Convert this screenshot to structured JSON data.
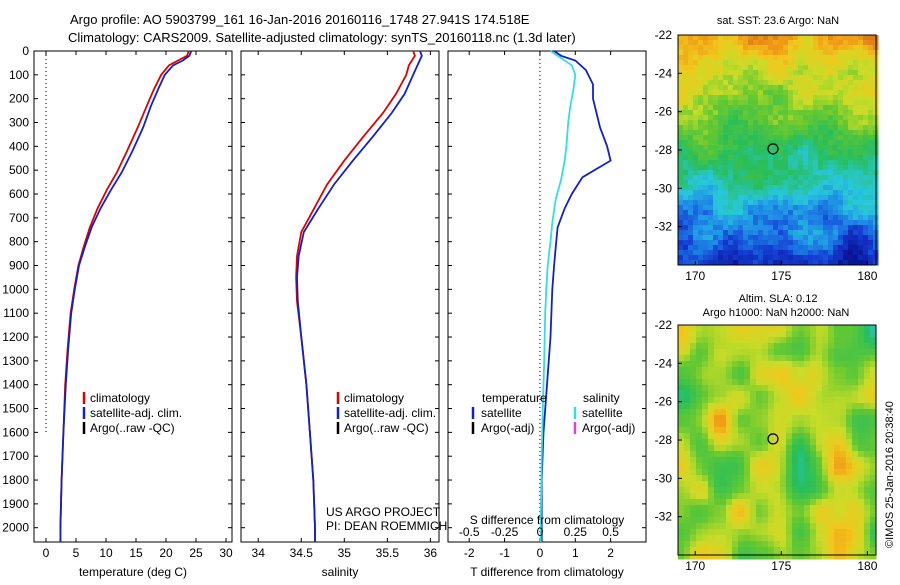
{
  "header": {
    "line1": "Argo profile: AO 5903799_161 16-Jan-2016 20160116_1748 27.941S 174.518E",
    "line2": "Climatology: CARS2009. Satellite-adjusted climatology: synTS_20160118.nc (1.3d later)"
  },
  "colors": {
    "climatology": "#e00000",
    "satellite": "#1020d0",
    "argo": "#000000",
    "salinity_satellite": "#30e0e0",
    "salinity_argo": "#e040e0"
  },
  "chart_data": [
    {
      "type": "line",
      "name": "temperature-profile",
      "xlabel": "temperature (deg C)",
      "ylim": [
        2060,
        0
      ],
      "xlim": [
        -2,
        31
      ],
      "xticks": [
        0,
        5,
        10,
        15,
        20,
        25,
        30
      ],
      "yticks": [
        0,
        100,
        200,
        300,
        400,
        500,
        600,
        700,
        800,
        900,
        1000,
        1100,
        1200,
        1300,
        1400,
        1500,
        1600,
        1700,
        1800,
        1900,
        2000
      ],
      "legend": [
        "climatology",
        "satellite-adj. clim.",
        "Argo(..raw -QC)"
      ],
      "zero_line": {
        "x": 0,
        "to_depth": 1600
      },
      "series": [
        {
          "name": "climatology",
          "points": [
            [
              23.8,
              0
            ],
            [
              23.5,
              20
            ],
            [
              22,
              40
            ],
            [
              20.5,
              60
            ],
            [
              19.2,
              100
            ],
            [
              18,
              160
            ],
            [
              16.8,
              230
            ],
            [
              15.3,
              320
            ],
            [
              13.5,
              420
            ],
            [
              11.8,
              510
            ],
            [
              10.2,
              580
            ],
            [
              8.6,
              660
            ],
            [
              7.3,
              740
            ],
            [
              6.3,
              820
            ],
            [
              5.4,
              900
            ],
            [
              4.7,
              1000
            ],
            [
              4.1,
              1100
            ],
            [
              3.6,
              1250
            ],
            [
              3.2,
              1400
            ],
            [
              2.9,
              1600
            ],
            [
              2.6,
              1800
            ],
            [
              2.4,
              2000
            ],
            [
              2.4,
              2060
            ]
          ]
        },
        {
          "name": "satellite-adj. clim.",
          "points": [
            [
              24.2,
              0
            ],
            [
              23.9,
              20
            ],
            [
              22.8,
              40
            ],
            [
              21.2,
              60
            ],
            [
              19.8,
              100
            ],
            [
              18.7,
              160
            ],
            [
              17.5,
              230
            ],
            [
              16.2,
              320
            ],
            [
              14.4,
              420
            ],
            [
              12.6,
              510
            ],
            [
              10.9,
              580
            ],
            [
              9.1,
              660
            ],
            [
              7.6,
              740
            ],
            [
              6.5,
              820
            ],
            [
              5.5,
              900
            ],
            [
              4.8,
              1000
            ],
            [
              4.2,
              1100
            ],
            [
              3.7,
              1250
            ],
            [
              3.3,
              1400
            ],
            [
              2.9,
              1600
            ],
            [
              2.6,
              1800
            ],
            [
              2.4,
              2000
            ],
            [
              2.4,
              2060
            ]
          ]
        }
      ]
    },
    {
      "type": "line",
      "name": "salinity-profile",
      "xlabel": "salinity",
      "ylim": [
        2060,
        0
      ],
      "xlim": [
        33.8,
        36.1
      ],
      "xticks": [
        34,
        34.5,
        35,
        35.5,
        36
      ],
      "legend": [
        "climatology",
        "satellite-adj. clim.",
        "Argo(..raw -QC)"
      ],
      "annotation": [
        "US ARGO PROJECT",
        "PI: DEAN ROEMMICH"
      ],
      "series": [
        {
          "name": "climatology",
          "points": [
            [
              35.8,
              0
            ],
            [
              35.82,
              20
            ],
            [
              35.75,
              60
            ],
            [
              35.72,
              100
            ],
            [
              35.6,
              180
            ],
            [
              35.45,
              260
            ],
            [
              35.22,
              360
            ],
            [
              35.0,
              460
            ],
            [
              34.8,
              560
            ],
            [
              34.65,
              660
            ],
            [
              34.5,
              760
            ],
            [
              34.45,
              860
            ],
            [
              34.44,
              950
            ],
            [
              34.45,
              1050
            ],
            [
              34.5,
              1200
            ],
            [
              34.56,
              1400
            ],
            [
              34.6,
              1600
            ],
            [
              34.64,
              1800
            ],
            [
              34.66,
              2000
            ],
            [
              34.66,
              2060
            ]
          ]
        },
        {
          "name": "satellite-adj. clim.",
          "points": [
            [
              35.88,
              0
            ],
            [
              35.9,
              20
            ],
            [
              35.85,
              60
            ],
            [
              35.8,
              100
            ],
            [
              35.7,
              180
            ],
            [
              35.55,
              260
            ],
            [
              35.33,
              360
            ],
            [
              35.1,
              460
            ],
            [
              34.88,
              560
            ],
            [
              34.7,
              660
            ],
            [
              34.53,
              760
            ],
            [
              34.47,
              860
            ],
            [
              34.45,
              950
            ],
            [
              34.46,
              1050
            ],
            [
              34.5,
              1200
            ],
            [
              34.56,
              1400
            ],
            [
              34.6,
              1600
            ],
            [
              34.64,
              1800
            ],
            [
              34.66,
              2000
            ],
            [
              34.66,
              2060
            ]
          ]
        }
      ]
    },
    {
      "type": "line",
      "name": "difference-profile",
      "xlabel": "T difference from climatology",
      "top_xlabel": "S difference from climatology",
      "ylim": [
        2060,
        0
      ],
      "xlim": [
        -2.6,
        3.0
      ],
      "xticks": [
        -2,
        -1,
        0,
        1,
        2
      ],
      "top_xticks": [
        "-0.5",
        "-0.25",
        "0",
        "0.25",
        "0.5"
      ],
      "legend_headers": [
        "temperature",
        "salinity"
      ],
      "legend": [
        "satellite",
        "Argo(-adj)",
        "satellite",
        "Argo(-adj)"
      ],
      "series": [
        {
          "name": "temperature satellite",
          "points": [
            [
              0.4,
              0
            ],
            [
              0.6,
              20
            ],
            [
              1.0,
              40
            ],
            [
              1.3,
              80
            ],
            [
              1.5,
              140
            ],
            [
              1.5,
              200
            ],
            [
              1.6,
              260
            ],
            [
              1.7,
              320
            ],
            [
              1.9,
              400
            ],
            [
              2.0,
              460
            ],
            [
              1.2,
              530
            ],
            [
              0.9,
              600
            ],
            [
              0.7,
              660
            ],
            [
              0.5,
              740
            ],
            [
              0.45,
              820
            ],
            [
              0.4,
              900
            ],
            [
              0.35,
              1000
            ],
            [
              0.3,
              1200
            ],
            [
              0.2,
              1400
            ],
            [
              0.1,
              1600
            ],
            [
              0.05,
              1800
            ],
            [
              0.05,
              2000
            ],
            [
              0.05,
              2060
            ]
          ]
        },
        {
          "name": "salinity satellite",
          "points": [
            [
              0.3,
              0
            ],
            [
              0.5,
              20
            ],
            [
              0.9,
              60
            ],
            [
              1.0,
              100
            ],
            [
              0.95,
              160
            ],
            [
              0.85,
              240
            ],
            [
              0.8,
              300
            ],
            [
              0.75,
              400
            ],
            [
              0.7,
              460
            ],
            [
              0.6,
              540
            ],
            [
              0.45,
              620
            ],
            [
              0.35,
              720
            ],
            [
              0.3,
              800
            ],
            [
              0.22,
              900
            ],
            [
              0.18,
              1000
            ],
            [
              0.15,
              1100
            ],
            [
              0.12,
              1300
            ],
            [
              0.08,
              1500
            ],
            [
              0.05,
              1700
            ],
            [
              0.03,
              1900
            ],
            [
              0.02,
              2060
            ]
          ]
        }
      ]
    },
    {
      "type": "heatmap",
      "name": "sst-map",
      "title": "sat. SST: 23.6  Argo: NaN",
      "xlim": [
        169,
        180.5
      ],
      "ylim": [
        -34,
        -22
      ],
      "xticks": [
        170,
        175,
        180
      ],
      "yticks": [
        -22,
        -24,
        -26,
        -28,
        -30,
        -32
      ],
      "marker": {
        "lon": 174.518,
        "lat": -27.941
      }
    },
    {
      "type": "heatmap",
      "name": "sla-map",
      "title": "Altim. SLA: 0.12",
      "subtitle": "Argo h1000: NaN h2000: NaN",
      "xlim": [
        169,
        180.5
      ],
      "ylim": [
        -34,
        -22
      ],
      "xticks": [
        170,
        175,
        180
      ],
      "yticks": [
        -22,
        -24,
        -26,
        -28,
        -30,
        -32
      ],
      "marker": {
        "lon": 174.518,
        "lat": -27.941
      }
    }
  ],
  "credit": "©IMOS 25-Jan-2016 20:38:40"
}
